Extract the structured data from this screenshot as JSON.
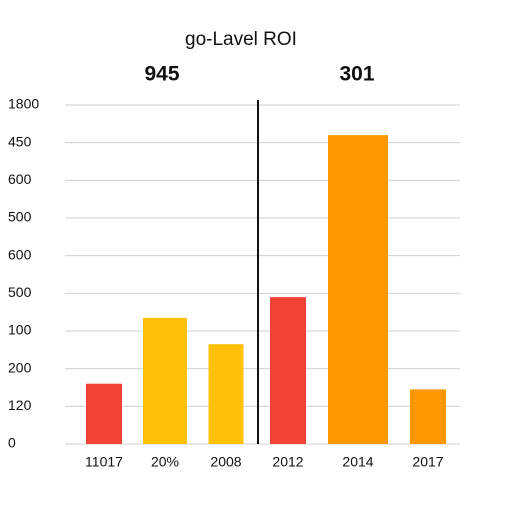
{
  "chart_data": {
    "type": "bar",
    "title": "go-Lavel ROI",
    "annotations": [
      "945",
      "301"
    ],
    "categories": [
      "11017",
      "20%",
      "2008",
      "2012",
      "2014",
      "2017"
    ],
    "values": [
      1.6,
      3.35,
      2.65,
      3.9,
      8.2,
      1.45
    ],
    "colors": [
      "#f44336",
      "#ffc107",
      "#ffc107",
      "#f44336",
      "#ff9800",
      "#ff9800"
    ],
    "ylim": [
      0,
      9
    ],
    "yticks": [
      {
        "value": 0,
        "label": "0"
      },
      {
        "value": 1,
        "label": "120"
      },
      {
        "value": 2,
        "label": "200"
      },
      {
        "value": 3,
        "label": "100"
      },
      {
        "value": 4,
        "label": "500"
      },
      {
        "value": 5,
        "label": "600"
      },
      {
        "value": 6,
        "label": "500"
      },
      {
        "value": 7,
        "label": "600"
      },
      {
        "value": 8,
        "label": "450"
      },
      {
        "value": 9,
        "label": "1800"
      }
    ],
    "grid": true
  }
}
